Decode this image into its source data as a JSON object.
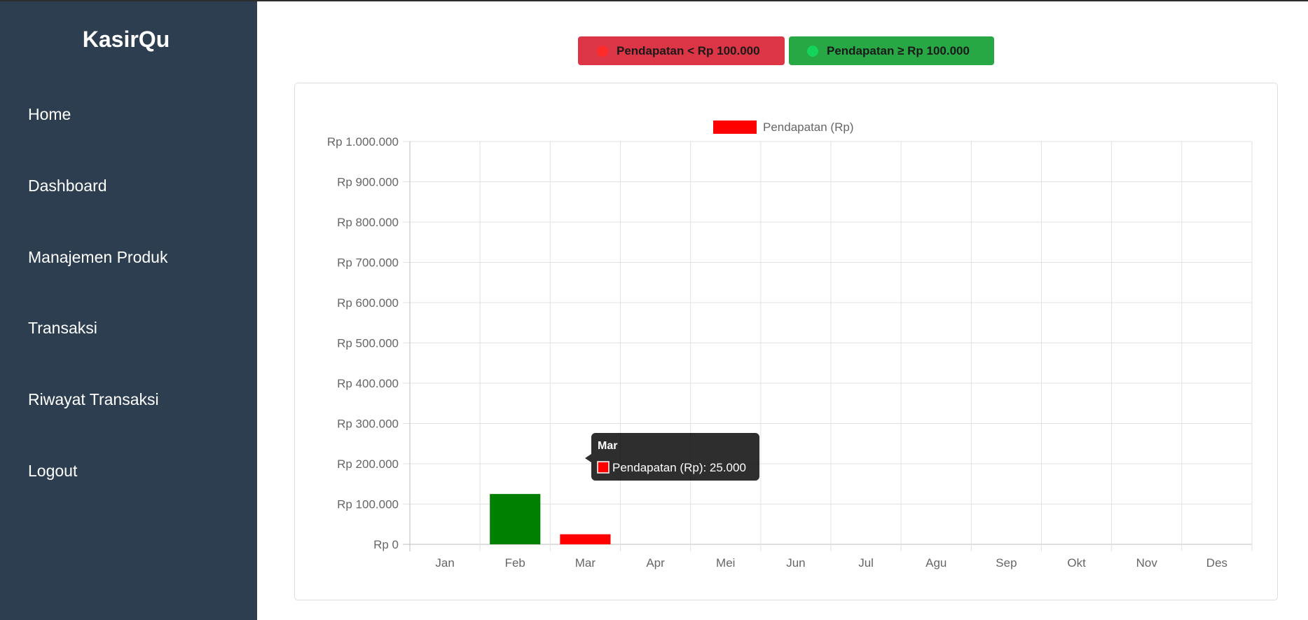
{
  "app": {
    "brand": "KasirQu"
  },
  "sidebar": {
    "items": [
      {
        "label": "Home"
      },
      {
        "label": "Dashboard"
      },
      {
        "label": "Manajemen Produk"
      },
      {
        "label": "Transaksi"
      },
      {
        "label": "Riwayat Transaksi"
      },
      {
        "label": "Logout"
      }
    ]
  },
  "legend_buttons": {
    "low": {
      "label": "Pendapatan < Rp 100.000",
      "color": "#dc3545"
    },
    "high": {
      "label": "Pendapatan ≥ Rp 100.000",
      "color": "#28a745"
    }
  },
  "chart_data": {
    "type": "bar",
    "categories": [
      "Jan",
      "Feb",
      "Mar",
      "Apr",
      "Mei",
      "Jun",
      "Jul",
      "Agu",
      "Sep",
      "Okt",
      "Nov",
      "Des"
    ],
    "series": [
      {
        "name": "Pendapatan (Rp)",
        "values": [
          0,
          125000,
          25000,
          0,
          0,
          0,
          0,
          0,
          0,
          0,
          0,
          0
        ]
      }
    ],
    "ylim": [
      0,
      1000000
    ],
    "yticks": [
      "Rp 0",
      "Rp 100.000",
      "Rp 200.000",
      "Rp 300.000",
      "Rp 400.000",
      "Rp 500.000",
      "Rp 600.000",
      "Rp 700.000",
      "Rp 800.000",
      "Rp 900.000",
      "Rp 1.000.000"
    ],
    "threshold": 100000,
    "colors": {
      "low": "#ff0000",
      "high": "#008000"
    },
    "legend_position": "top",
    "grid": true
  },
  "tooltip": {
    "title": "Mar",
    "text": "Pendapatan (Rp): 25.000",
    "swatch_color": "#ff0000"
  }
}
